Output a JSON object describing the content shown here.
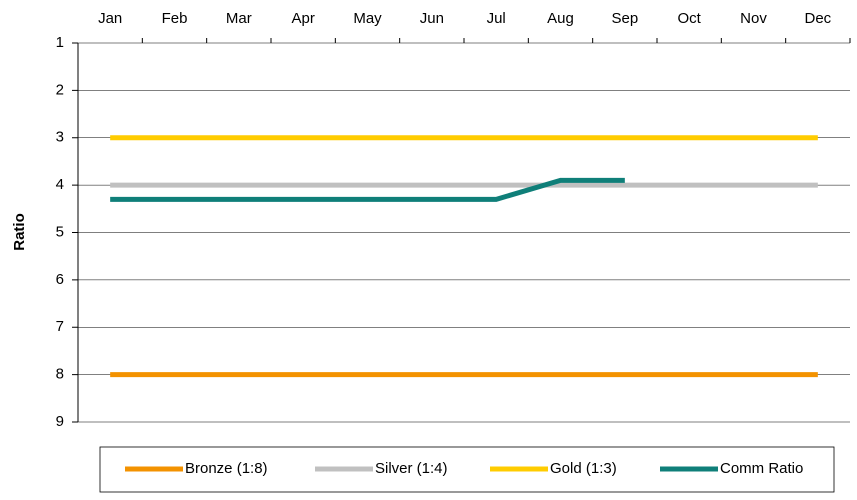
{
  "chart_data": {
    "type": "line",
    "y_label": "Ratio",
    "categories": [
      "Jan",
      "Feb",
      "Mar",
      "Apr",
      "May",
      "Jun",
      "Jul",
      "Aug",
      "Sep",
      "Oct",
      "Nov",
      "Dec"
    ],
    "series": [
      {
        "name": "Bronze (1:8)",
        "color": "#f39200",
        "values": [
          8,
          8,
          8,
          8,
          8,
          8,
          8,
          8,
          8,
          8,
          8,
          8
        ]
      },
      {
        "name": "Silver (1:4)",
        "color": "#c0c0c0",
        "values": [
          4,
          4,
          4,
          4,
          4,
          4,
          4,
          4,
          4,
          4,
          4,
          4
        ]
      },
      {
        "name": "Gold (1:3)",
        "color": "#ffcc00",
        "values": [
          3,
          3,
          3,
          3,
          3,
          3,
          3,
          3,
          3,
          3,
          3,
          3
        ]
      },
      {
        "name": "Comm Ratio",
        "color": "#0f7f79",
        "values": [
          4.3,
          4.3,
          4.3,
          4.3,
          4.3,
          4.3,
          4.3,
          3.9,
          3.9,
          null,
          null,
          null
        ]
      }
    ],
    "ylim": [
      1,
      9
    ],
    "yticks": [
      1,
      2,
      3,
      4,
      5,
      6,
      7,
      8,
      9
    ],
    "y_inverted": true,
    "x_axis_position": "top",
    "grid": true,
    "legend": "bottom"
  }
}
